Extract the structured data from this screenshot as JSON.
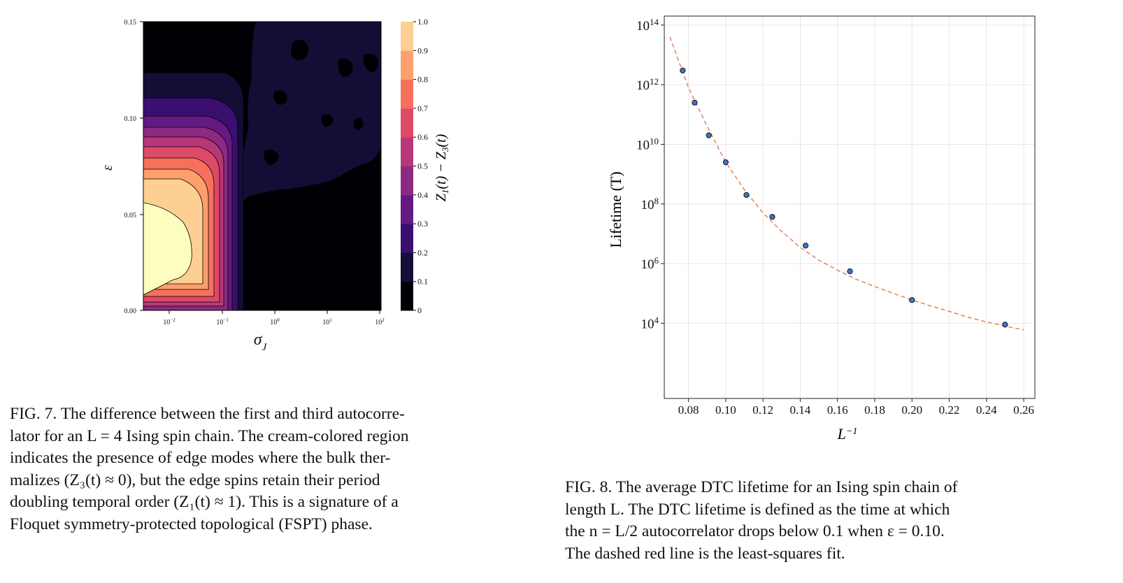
{
  "figure7": {
    "chart_data": {
      "type": "heatmap",
      "title": "",
      "xlabel": "σ_J",
      "ylabel": "ε",
      "x_scale": "log",
      "xlim": [
        0.003,
        100
      ],
      "ylim": [
        0.0,
        0.15
      ],
      "x_ticks": [
        "10^-2",
        "10^-1",
        "10^0",
        "10^1",
        "10^2"
      ],
      "y_ticks": [
        "0.00",
        "0.05",
        "0.10",
        "0.15"
      ],
      "colorbar_label": "Z_1(t) − Z_3(t)",
      "colorbar_ticks": [
        "0",
        "0.1",
        "0.2",
        "0.3",
        "0.4",
        "0.5",
        "0.6",
        "0.7",
        "0.8",
        "0.9",
        "1.0"
      ],
      "colormap": [
        "#000004",
        "#140e36",
        "#3b0f70",
        "#641a80",
        "#8c2981",
        "#b73779",
        "#de4968",
        "#f7705c",
        "#fe9f6d",
        "#fecf92",
        "#fcfdbf"
      ],
      "levels": [
        0,
        0.1,
        0.2,
        0.3,
        0.4,
        0.5,
        0.6,
        0.7,
        0.8,
        0.9,
        1.0
      ]
    }
  },
  "figure8": {
    "chart_data": {
      "type": "scatter",
      "title": "",
      "xlabel": "L^-1",
      "ylabel": "Lifetime (T)",
      "y_scale": "log",
      "xlim": [
        0.067,
        0.266
      ],
      "ylim": [
        30,
        200000000000000
      ],
      "x_ticks": [
        "0.08",
        "0.10",
        "0.12",
        "0.14",
        "0.16",
        "0.18",
        "0.20",
        "0.22",
        "0.24",
        "0.26"
      ],
      "y_ticks": [
        "10^4",
        "10^6",
        "10^8",
        "10^10",
        "10^12",
        "10^14"
      ],
      "grid": true,
      "series": [
        {
          "kind": "points",
          "color": "#3a78c9",
          "x": [
            0.0769,
            0.0833,
            0.0909,
            0.1,
            0.1111,
            0.125,
            0.1429,
            0.1667,
            0.2,
            0.25
          ],
          "y": [
            3000000000000,
            250000000000,
            20000000000,
            2500000000,
            200000000,
            37000000,
            4000000,
            550000,
            60000,
            9000
          ]
        },
        {
          "kind": "dashed-line",
          "color": "#e07c4c",
          "x": [
            0.07,
            0.08,
            0.09,
            0.1,
            0.11,
            0.12,
            0.13,
            0.14,
            0.15,
            0.16,
            0.17,
            0.18,
            0.19,
            0.2,
            0.21,
            0.22,
            0.23,
            0.24,
            0.25,
            0.26
          ],
          "y": [
            40000000000000,
            800000000000,
            40000000000,
            2500000000,
            300000000,
            50000000,
            12000000,
            3500000,
            1300000,
            600000,
            300000,
            170000,
            100000,
            60000,
            38000,
            25000,
            16000,
            11000,
            8000,
            6000
          ]
        }
      ]
    }
  },
  "captions": {
    "fig7": [
      "FIG. 7. The difference between the first and third autocorre-",
      "lator for an L = 4 Ising spin chain. The cream-colored region",
      "indicates the presence of edge modes where the bulk ther-",
      "malizes (Z₃(t) ≈ 0), but the edge spins retain their period",
      "doubling temporal order (Z₁(t) ≈ 1). This is a signature of a",
      "Floquet symmetry-protected topological (FSPT) phase."
    ],
    "fig8": [
      "FIG. 8. The average DTC lifetime for an Ising spin chain of",
      "length L. The DTC lifetime is defined as the time at which",
      "the n = L/2 autocorrelator drops below 0.1 when ε = 0.10.",
      "The dashed red line is the least-squares fit."
    ]
  }
}
